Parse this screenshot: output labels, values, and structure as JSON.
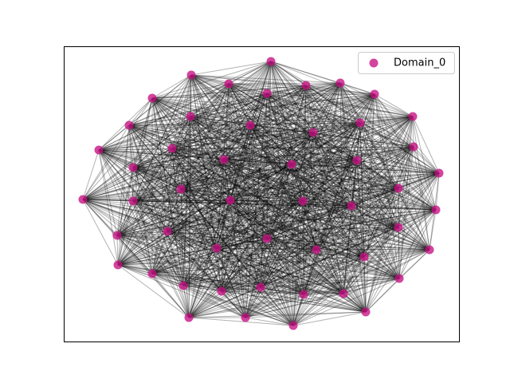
{
  "legend": {
    "label": "Domain_0",
    "color": "#c71585"
  }
}
